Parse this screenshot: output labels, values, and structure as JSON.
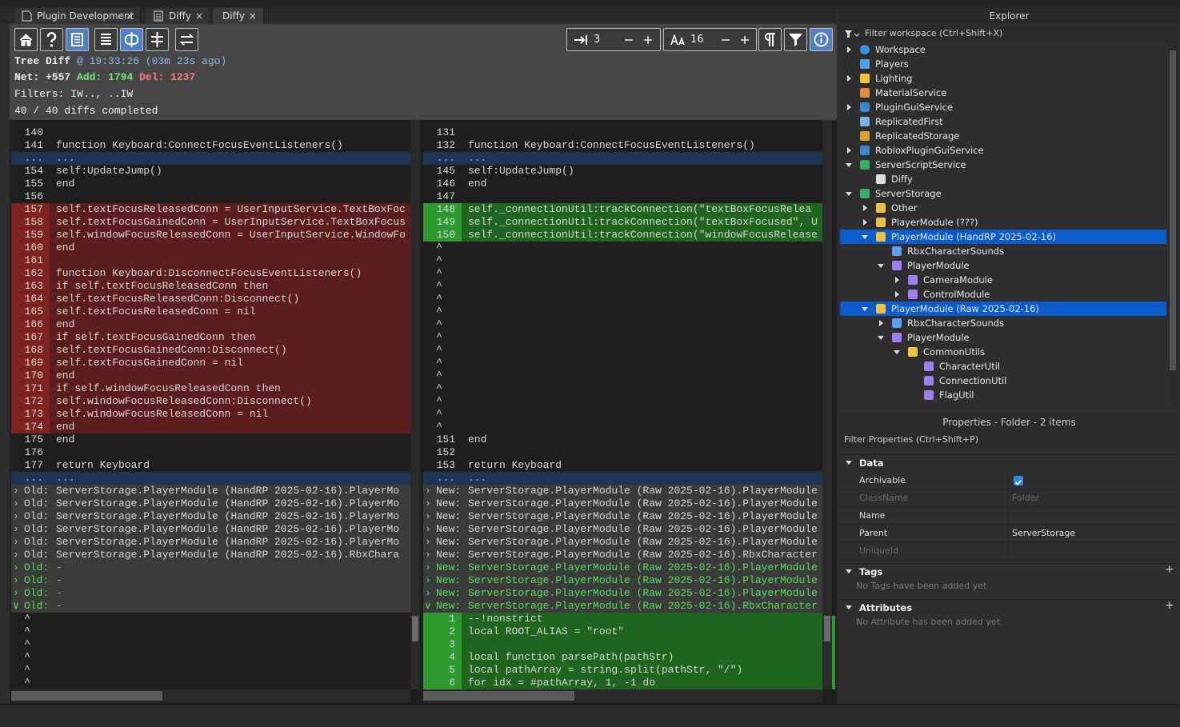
{
  "tabs": [
    "Plugin Development",
    "Diffy",
    "Diffy"
  ],
  "toolbar": {
    "context_lines": "3",
    "font_size": "16"
  },
  "header": {
    "title": "Tree Diff",
    "timestamp": "@ 19:33:26 (03m 23s ago)",
    "net": "Net: +557",
    "added": "Add: 1794",
    "deleted": "Del: 1237",
    "filters": "Filters: IW.., ..IW",
    "progress": "40 / 40 diffs completed"
  },
  "left_pane": {
    "rows": [
      {
        "n": "140",
        "state": "same"
      },
      {
        "n": "141",
        "code": "function Keyboard:ConnectFocusEventListeners()",
        "state": "same"
      },
      {
        "n": "...",
        "code": "...",
        "state": "sep"
      },
      {
        "n": "154",
        "code": "self:UpdateJump()",
        "state": "same"
      },
      {
        "n": "155",
        "code": "end",
        "state": "same"
      },
      {
        "n": "156",
        "state": "same"
      },
      {
        "n": "157",
        "code": "self.textFocusReleasedConn = UserInputService.TextBoxFoc",
        "state": "del"
      },
      {
        "n": "158",
        "code": "self.textFocusGainedConn = UserInputService.TextBoxFocus",
        "state": "del"
      },
      {
        "n": "159",
        "code": "self.windowFocusReleasedConn = UserInputService.WindowFo",
        "state": "del"
      },
      {
        "n": "160",
        "code": "end",
        "state": "del"
      },
      {
        "n": "161",
        "state": "del"
      },
      {
        "n": "162",
        "code": "function Keyboard:DisconnectFocusEventListeners()",
        "state": "del"
      },
      {
        "n": "163",
        "code": "if self.textFocusReleasedConn then",
        "state": "del"
      },
      {
        "n": "164",
        "code": "self.textFocusReleasedConn:Disconnect()",
        "state": "del"
      },
      {
        "n": "165",
        "code": "self.textFocusReleasedConn = nil",
        "state": "del"
      },
      {
        "n": "166",
        "code": "end",
        "state": "del"
      },
      {
        "n": "167",
        "code": "if self.textFocusGainedConn then",
        "state": "del"
      },
      {
        "n": "168",
        "code": "self.textFocusGainedConn:Disconnect()",
        "state": "del"
      },
      {
        "n": "169",
        "code": "self.textFocusGainedConn = nil",
        "state": "del"
      },
      {
        "n": "170",
        "code": "end",
        "state": "del"
      },
      {
        "n": "171",
        "code": "if self.windowFocusReleasedConn then",
        "state": "del"
      },
      {
        "n": "172",
        "code": "self.windowFocusReleasedConn:Disconnect()",
        "state": "del"
      },
      {
        "n": "173",
        "code": "self.windowFocusReleasedConn = nil",
        "state": "del"
      },
      {
        "n": "174",
        "code": "end",
        "state": "del"
      },
      {
        "n": "175",
        "code": "end",
        "state": "same"
      },
      {
        "n": "176",
        "state": "same"
      },
      {
        "n": "177",
        "code": "return Keyboard",
        "state": "same"
      },
      {
        "n": "...",
        "code": "...",
        "state": "sep"
      },
      {
        "label": "Old:",
        "code": "ServerStorage.PlayerModule (HandRP 2025-02-16).PlayerMo",
        "state": "entry"
      },
      {
        "label": "Old:",
        "code": "ServerStorage.PlayerModule (HandRP 2025-02-16).PlayerMo",
        "state": "entry"
      },
      {
        "label": "Old:",
        "code": "ServerStorage.PlayerModule (HandRP 2025-02-16).PlayerMo",
        "state": "entry"
      },
      {
        "label": "Old:",
        "code": "ServerStorage.PlayerModule (HandRP 2025-02-16).PlayerMo",
        "state": "entry"
      },
      {
        "label": "Old:",
        "code": "ServerStorage.PlayerModule (HandRP 2025-02-16).PlayerMo",
        "state": "entry"
      },
      {
        "label": "Old:",
        "code": "ServerStorage.PlayerModule (HandRP 2025-02-16).RbxChara",
        "state": "entry"
      },
      {
        "label": "Old:",
        "code": "-",
        "state": "entry-new"
      },
      {
        "label": "Old:",
        "code": "-",
        "state": "entry-new"
      },
      {
        "label": "Old:",
        "code": "-",
        "state": "entry-new"
      },
      {
        "label": "Old:",
        "code": "-",
        "state": "entry-new",
        "open": true
      },
      {
        "n": "^",
        "state": "pad"
      },
      {
        "n": "^",
        "state": "pad"
      },
      {
        "n": "^",
        "state": "pad"
      },
      {
        "n": "^",
        "state": "pad"
      },
      {
        "n": "^",
        "state": "pad"
      },
      {
        "n": "^",
        "state": "pad"
      }
    ]
  },
  "right_pane": {
    "rows": [
      {
        "n": "131",
        "state": "same"
      },
      {
        "n": "132",
        "code": "function Keyboard:ConnectFocusEventListeners()",
        "state": "same"
      },
      {
        "n": "...",
        "code": "...",
        "state": "sep"
      },
      {
        "n": "145",
        "code": "self:UpdateJump()",
        "state": "same"
      },
      {
        "n": "146",
        "code": "end",
        "state": "same"
      },
      {
        "n": "147",
        "state": "same"
      },
      {
        "n": "148",
        "code": "self._connectionUtil:trackConnection(\"textBoxFocusRelea",
        "state": "add"
      },
      {
        "n": "149",
        "code": "self._connectionUtil:trackConnection(\"textBoxFocused\", U",
        "state": "add"
      },
      {
        "n": "150",
        "code": "self._connectionUtil:trackConnection(\"windowFocusRelease",
        "state": "add"
      },
      {
        "n": "^",
        "state": "pad"
      },
      {
        "n": "^",
        "state": "pad"
      },
      {
        "n": "^",
        "state": "pad"
      },
      {
        "n": "^",
        "state": "pad"
      },
      {
        "n": "^",
        "state": "pad"
      },
      {
        "n": "^",
        "state": "pad"
      },
      {
        "n": "^",
        "state": "pad"
      },
      {
        "n": "^",
        "state": "pad"
      },
      {
        "n": "^",
        "state": "pad"
      },
      {
        "n": "^",
        "state": "pad"
      },
      {
        "n": "^",
        "state": "pad"
      },
      {
        "n": "^",
        "state": "pad"
      },
      {
        "n": "^",
        "state": "pad"
      },
      {
        "n": "^",
        "state": "pad"
      },
      {
        "n": "^",
        "state": "pad"
      },
      {
        "n": "151",
        "code": "end",
        "state": "same"
      },
      {
        "n": "152",
        "state": "same"
      },
      {
        "n": "153",
        "code": "return Keyboard",
        "state": "same"
      },
      {
        "n": "...",
        "code": "...",
        "state": "sep"
      },
      {
        "label": "New:",
        "code": "ServerStorage.PlayerModule (Raw 2025-02-16).PlayerModule",
        "state": "entry"
      },
      {
        "label": "New:",
        "code": "ServerStorage.PlayerModule (Raw 2025-02-16).PlayerModule",
        "state": "entry"
      },
      {
        "label": "New:",
        "code": "ServerStorage.PlayerModule (Raw 2025-02-16).PlayerModule",
        "state": "entry"
      },
      {
        "label": "New:",
        "code": "ServerStorage.PlayerModule (Raw 2025-02-16).PlayerModule",
        "state": "entry"
      },
      {
        "label": "New:",
        "code": "ServerStorage.PlayerModule (Raw 2025-02-16).PlayerModule",
        "state": "entry"
      },
      {
        "label": "New:",
        "code": "ServerStorage.PlayerModule (Raw 2025-02-16).RbxCharacter",
        "state": "entry"
      },
      {
        "label": "New:",
        "code": "ServerStorage.PlayerModule (Raw 2025-02-16).PlayerModule",
        "state": "entry-new"
      },
      {
        "label": "New:",
        "code": "ServerStorage.PlayerModule (Raw 2025-02-16).PlayerModule",
        "state": "entry-new"
      },
      {
        "label": "New:",
        "code": "ServerStorage.PlayerModule (Raw 2025-02-16).PlayerModule",
        "state": "entry-new"
      },
      {
        "label": "New:",
        "code": "ServerStorage.PlayerModule (Raw 2025-02-16).RbxCharacter",
        "state": "entry-new",
        "open": true
      },
      {
        "n": "1",
        "code": "--!nonstrict",
        "state": "add"
      },
      {
        "n": "2",
        "code": "local ROOT_ALIAS = \"root\"",
        "state": "add"
      },
      {
        "n": "3",
        "state": "add"
      },
      {
        "n": "4",
        "code": "local function parsePath(pathStr)",
        "state": "add"
      },
      {
        "n": "5",
        "code": "local pathArray = string.split(pathStr, \"/\")",
        "state": "add"
      },
      {
        "n": "6",
        "code": "for idx = #pathArray, 1, -1 do",
        "state": "add"
      }
    ]
  },
  "explorer": {
    "title": "Explorer",
    "filter": "Filter workspace (Ctrl+Shift+X)",
    "items": [
      {
        "label": "Workspace",
        "depth": 0,
        "expander": "collapsed",
        "icon": "globe"
      },
      {
        "label": "Players",
        "depth": 0,
        "icon": "players"
      },
      {
        "label": "Lighting",
        "depth": 0,
        "expander": "collapsed",
        "icon": "bulb"
      },
      {
        "label": "MaterialService",
        "depth": 0,
        "icon": "material"
      },
      {
        "label": "PluginGuiService",
        "depth": 0,
        "expander": "collapsed",
        "icon": "gui"
      },
      {
        "label": "ReplicatedFirst",
        "depth": 0,
        "icon": "replicated"
      },
      {
        "label": "ReplicatedStorage",
        "depth": 0,
        "icon": "storage"
      },
      {
        "label": "RobloxPluginGuiService",
        "depth": 0,
        "expander": "collapsed",
        "icon": "gui"
      },
      {
        "label": "ServerScriptService",
        "depth": 0,
        "expander": "expanded",
        "icon": "server"
      },
      {
        "label": "Diffy",
        "depth": 1,
        "icon": "doc"
      },
      {
        "label": "ServerStorage",
        "depth": 0,
        "expander": "expanded",
        "icon": "server"
      },
      {
        "label": "Other",
        "depth": 1,
        "expander": "collapsed",
        "icon": "folder"
      },
      {
        "label": "PlayerModule (???)",
        "depth": 1,
        "expander": "collapsed",
        "icon": "folder"
      },
      {
        "label": "PlayerModule (HandRP 2025-02-16)",
        "depth": 1,
        "expander": "expanded",
        "icon": "folder",
        "selected": true
      },
      {
        "label": "RbxCharacterSounds",
        "depth": 2,
        "icon": "localscript"
      },
      {
        "label": "PlayerModule",
        "depth": 2,
        "expander": "expanded",
        "icon": "module"
      },
      {
        "label": "CameraModule",
        "depth": 3,
        "expander": "collapsed",
        "icon": "module"
      },
      {
        "label": "ControlModule",
        "depth": 3,
        "expander": "collapsed",
        "icon": "module"
      },
      {
        "label": "PlayerModule (Raw 2025-02-16)",
        "depth": 1,
        "expander": "expanded",
        "icon": "folder",
        "selected": true
      },
      {
        "label": "RbxCharacterSounds",
        "depth": 2,
        "expander": "collapsed",
        "icon": "localscript"
      },
      {
        "label": "PlayerModule",
        "depth": 2,
        "expander": "expanded",
        "icon": "module"
      },
      {
        "label": "CommonUtils",
        "depth": 3,
        "expander": "expanded",
        "icon": "folder"
      },
      {
        "label": "CharacterUtil",
        "depth": 4,
        "icon": "module"
      },
      {
        "label": "ConnectionUtil",
        "depth": 4,
        "icon": "module"
      },
      {
        "label": "FlagUtil",
        "depth": 4,
        "icon": "module"
      }
    ]
  },
  "properties": {
    "title": "Properties - Folder - 2 items",
    "filter": "Filter Properties (Ctrl+Shift+P)",
    "data_section": "Data",
    "rows": [
      {
        "name": "Archivable",
        "checked": true
      },
      {
        "name": "ClassName",
        "value": "Folder",
        "disabled": true
      },
      {
        "name": "Name"
      },
      {
        "name": "Parent",
        "value": "ServerStorage"
      },
      {
        "name": "UniqueId",
        "disabled": true
      }
    ],
    "tags_section": "Tags",
    "tags_empty": "No Tags have been added yet",
    "attributes_section": "Attributes",
    "attributes_empty": "No Attribute has been added yet"
  }
}
